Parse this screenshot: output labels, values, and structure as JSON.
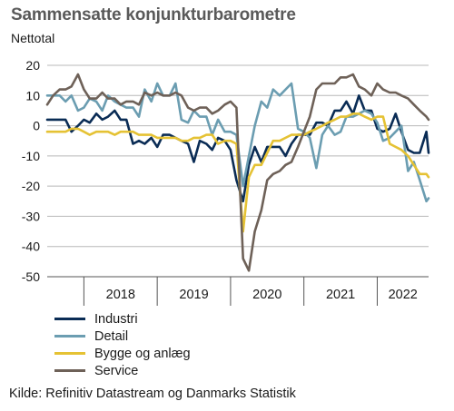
{
  "chart_data": {
    "type": "line",
    "title": "Sammensatte konjunkturbarometre",
    "subtitle": "Nettotal",
    "source": "Kilde: Refinitiv Datastream og Danmarks Statistik",
    "ylim": [
      -50,
      20
    ],
    "yticks": [
      20,
      10,
      0,
      -10,
      -20,
      -30,
      -40,
      -50
    ],
    "xlim": [
      2017.5,
      2022.7
    ],
    "year_labels": [
      "2018",
      "2019",
      "2020",
      "2021",
      "2022"
    ],
    "grid": true,
    "legend_position": "bottom-left",
    "series": [
      {
        "name": "Industri",
        "color": "#0a2c55",
        "values": [
          2,
          2,
          2,
          2,
          -2,
          0,
          2,
          1,
          4,
          2,
          3,
          5,
          2,
          2,
          -6,
          -5,
          -6,
          -4,
          -7,
          -3,
          -3,
          -4,
          -5,
          -6,
          -12,
          -5,
          -6,
          -8,
          -4,
          -5,
          -8,
          -18,
          -25,
          -13,
          -7,
          -12,
          -7,
          -7,
          -7,
          -10,
          -6,
          -3,
          -3,
          -3,
          1,
          1,
          0,
          5,
          5,
          8,
          4,
          10,
          5,
          5,
          -1,
          -2,
          -1,
          4,
          -2,
          -8,
          -9,
          -9,
          -2,
          -9
        ],
        "x": [
          2017.5,
          2017.58,
          2017.67,
          2017.75,
          2017.83,
          2017.92,
          2018.0,
          2018.08,
          2018.17,
          2018.25,
          2018.33,
          2018.42,
          2018.5,
          2018.58,
          2018.67,
          2018.75,
          2018.83,
          2018.92,
          2019.0,
          2019.08,
          2019.17,
          2019.25,
          2019.33,
          2019.42,
          2019.5,
          2019.58,
          2019.67,
          2019.75,
          2019.83,
          2019.92,
          2020.0,
          2020.08,
          2020.17,
          2020.25,
          2020.33,
          2020.42,
          2020.5,
          2020.58,
          2020.67,
          2020.75,
          2020.83,
          2020.92,
          2021.0,
          2021.08,
          2021.17,
          2021.25,
          2021.33,
          2021.42,
          2021.5,
          2021.58,
          2021.67,
          2021.75,
          2021.83,
          2021.92,
          2022.0,
          2022.08,
          2022.17,
          2022.25,
          2022.33,
          2022.42,
          2022.5,
          2022.58,
          2022.67,
          2022.7
        ]
      },
      {
        "name": "Detail",
        "color": "#6b9db1",
        "values": [
          10,
          10,
          10,
          8,
          10,
          5,
          6,
          9,
          8,
          5,
          10,
          8,
          7,
          6,
          6,
          3,
          12,
          8,
          14,
          10,
          10,
          14,
          2,
          1,
          5,
          3,
          3,
          -3,
          2,
          -2,
          -2,
          -3,
          -20,
          -10,
          0,
          8,
          6,
          12,
          10,
          12,
          14,
          -1,
          -2,
          -4,
          -14,
          -3,
          0,
          -3,
          -2,
          3,
          3,
          4,
          5,
          4,
          1,
          -5,
          -4,
          -2,
          0,
          -15,
          -12,
          -18,
          -25,
          -24
        ],
        "x": [
          2017.5,
          2017.58,
          2017.67,
          2017.75,
          2017.83,
          2017.92,
          2018.0,
          2018.08,
          2018.17,
          2018.25,
          2018.33,
          2018.42,
          2018.5,
          2018.58,
          2018.67,
          2018.75,
          2018.83,
          2018.92,
          2019.0,
          2019.08,
          2019.17,
          2019.25,
          2019.33,
          2019.42,
          2019.5,
          2019.58,
          2019.67,
          2019.75,
          2019.83,
          2019.92,
          2020.0,
          2020.08,
          2020.17,
          2020.25,
          2020.33,
          2020.42,
          2020.5,
          2020.58,
          2020.67,
          2020.75,
          2020.83,
          2020.92,
          2021.0,
          2021.08,
          2021.17,
          2021.25,
          2021.33,
          2021.42,
          2021.5,
          2021.58,
          2021.67,
          2021.75,
          2021.83,
          2021.92,
          2022.0,
          2022.08,
          2022.17,
          2022.25,
          2022.33,
          2022.42,
          2022.5,
          2022.58,
          2022.67,
          2022.7
        ]
      },
      {
        "name": "Bygge og anlæg",
        "color": "#e5c234",
        "values": [
          -2,
          -2,
          -2,
          -2,
          -1,
          -1,
          -2,
          -3,
          -2,
          -2,
          -2,
          -3,
          -2,
          -2,
          -2,
          -3,
          -3,
          -3,
          -4,
          -4,
          -4,
          -4,
          -5,
          -5,
          -4,
          -4,
          -3,
          -3,
          -6,
          -5,
          -5,
          -6,
          -35,
          -17,
          -13,
          -13,
          -9,
          -5,
          -5,
          -4,
          -3,
          -3,
          -3,
          -2,
          -1,
          0,
          1,
          2,
          3,
          3,
          4,
          4,
          3,
          2,
          3,
          3,
          -6,
          -7,
          -8,
          -10,
          -13,
          -16,
          -16,
          -17
        ],
        "x": [
          2017.5,
          2017.58,
          2017.67,
          2017.75,
          2017.83,
          2017.92,
          2018.0,
          2018.08,
          2018.17,
          2018.25,
          2018.33,
          2018.42,
          2018.5,
          2018.58,
          2018.67,
          2018.75,
          2018.83,
          2018.92,
          2019.0,
          2019.08,
          2019.17,
          2019.25,
          2019.33,
          2019.42,
          2019.5,
          2019.58,
          2019.67,
          2019.75,
          2019.83,
          2019.92,
          2020.0,
          2020.08,
          2020.17,
          2020.25,
          2020.33,
          2020.42,
          2020.5,
          2020.58,
          2020.67,
          2020.75,
          2020.83,
          2020.92,
          2021.0,
          2021.08,
          2021.17,
          2021.25,
          2021.33,
          2021.42,
          2021.5,
          2021.58,
          2021.67,
          2021.75,
          2021.83,
          2021.92,
          2022.0,
          2022.08,
          2022.17,
          2022.25,
          2022.33,
          2022.42,
          2022.5,
          2022.58,
          2022.67,
          2022.7
        ]
      },
      {
        "name": "Service",
        "color": "#6e6158",
        "values": [
          7,
          10,
          12,
          12,
          13,
          17,
          12,
          9,
          9,
          11,
          9,
          9,
          7,
          8,
          8,
          7,
          11,
          10,
          11,
          10,
          10,
          11,
          10,
          6,
          5,
          6,
          6,
          4,
          5,
          7,
          8,
          6,
          -44,
          -48,
          -35,
          -28,
          -18,
          -16,
          -15,
          -13,
          -12,
          -7,
          -2,
          3,
          12,
          14,
          14,
          14,
          16,
          16,
          17,
          13,
          12,
          10,
          14,
          12,
          11,
          11,
          10,
          9,
          7,
          5,
          3,
          2
        ],
        "x": [
          2017.5,
          2017.58,
          2017.67,
          2017.75,
          2017.83,
          2017.92,
          2018.0,
          2018.08,
          2018.17,
          2018.25,
          2018.33,
          2018.42,
          2018.5,
          2018.58,
          2018.67,
          2018.75,
          2018.83,
          2018.92,
          2019.0,
          2019.08,
          2019.17,
          2019.25,
          2019.33,
          2019.42,
          2019.5,
          2019.58,
          2019.67,
          2019.75,
          2019.83,
          2019.92,
          2020.0,
          2020.08,
          2020.17,
          2020.25,
          2020.33,
          2020.42,
          2020.5,
          2020.58,
          2020.67,
          2020.75,
          2020.83,
          2020.92,
          2021.0,
          2021.08,
          2021.17,
          2021.25,
          2021.33,
          2021.42,
          2021.5,
          2021.58,
          2021.67,
          2021.75,
          2021.83,
          2021.92,
          2022.0,
          2022.08,
          2022.17,
          2022.25,
          2022.33,
          2022.42,
          2022.5,
          2022.58,
          2022.67,
          2022.7
        ]
      }
    ]
  }
}
